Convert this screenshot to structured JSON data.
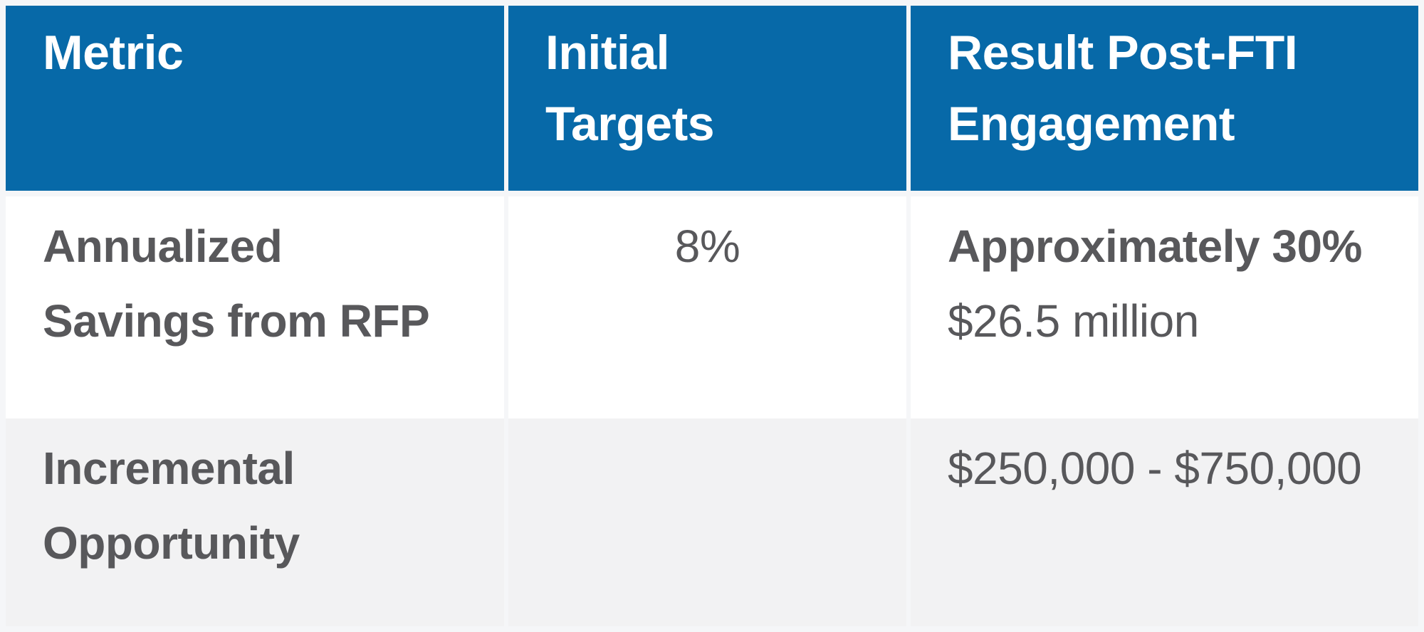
{
  "table": {
    "columns": [
      {
        "id": "metric",
        "label": "Metric",
        "lines": [
          "Metric"
        ]
      },
      {
        "id": "initial_targets",
        "label": "Initial Targets",
        "lines": [
          "Initial",
          "Targets"
        ]
      },
      {
        "id": "result_post_fti_engagement",
        "label": "Result Post-FTI Engagement",
        "lines": [
          "Result Post-FTI",
          "Engagement"
        ]
      }
    ],
    "rows": [
      {
        "metric": {
          "text": "Annualized Savings from RFP",
          "lines": [
            "Annualized",
            "Savings from RFP"
          ]
        },
        "initial_target": {
          "text": "8%"
        },
        "result": {
          "emphasis_text": "Approximately 30%",
          "detail_text": "$26.5 million"
        }
      },
      {
        "metric": {
          "text": "Incremental Opportunity",
          "lines": [
            "Incremental",
            "Opportunity"
          ]
        },
        "initial_target": {
          "text": ""
        },
        "result": {
          "emphasis_text": "",
          "detail_text": "$250,000 - $750,000"
        }
      }
    ],
    "colors": {
      "header_bg": "#0769A8",
      "header_text": "#FFFFFF",
      "body_text": "#58585B",
      "alt_row_bg": "#F2F2F3",
      "row_bg": "#FFFFFF",
      "gap": "#F5F6F8"
    }
  },
  "chart_data": {
    "type": "table",
    "columns": [
      "Metric",
      "Initial Targets",
      "Result Post-FTI Engagement"
    ],
    "rows": [
      [
        "Annualized Savings from RFP",
        "8%",
        [
          "Approximately 30%",
          "$26.5 million"
        ]
      ],
      [
        "Incremental Opportunity",
        "",
        [
          "$250,000 - $750,000"
        ]
      ]
    ],
    "title": "",
    "legend": "none",
    "grid": "column gaps only, no row borders; alternating row shading"
  }
}
